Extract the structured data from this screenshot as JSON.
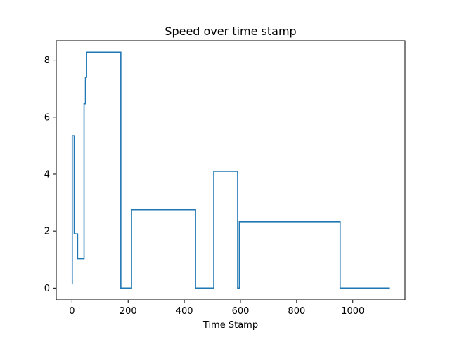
{
  "chart_data": {
    "type": "line",
    "title": "Speed over time stamp",
    "xlabel": "Time Stamp",
    "ylabel": "",
    "xlim": [
      -56,
      1186
    ],
    "ylim": [
      -0.41,
      8.68
    ],
    "xticks": [
      0,
      200,
      400,
      600,
      800,
      1000
    ],
    "yticks": [
      0,
      2,
      4,
      6,
      8
    ],
    "grid": false,
    "legend": "none",
    "series": [
      {
        "name": "",
        "color": "#1f77b4",
        "x": [
          0,
          1,
          1,
          8,
          8,
          16,
          16,
          20,
          20,
          43,
          43,
          46,
          46,
          48,
          48,
          50,
          50,
          52,
          52,
          174,
          174,
          176,
          176,
          212,
          212,
          216,
          216,
          440,
          440,
          443,
          443,
          505,
          505,
          508,
          508,
          590,
          590,
          593,
          593,
          596,
          596,
          598,
          598,
          955,
          955,
          958,
          958,
          1130
        ],
        "y": [
          0.15,
          0.15,
          5.35,
          5.35,
          1.9,
          1.9,
          1.9,
          1.9,
          1.03,
          1.03,
          6.47,
          6.47,
          6.47,
          6.47,
          7.4,
          7.4,
          7.4,
          7.4,
          8.28,
          8.28,
          0,
          0,
          0,
          0,
          2.75,
          2.75,
          2.75,
          2.75,
          0,
          0,
          0,
          0,
          4.1,
          4.1,
          4.1,
          4.1,
          0,
          0,
          0,
          0,
          2.33,
          2.33,
          2.33,
          2.33,
          0,
          0,
          0,
          0
        ]
      }
    ]
  }
}
